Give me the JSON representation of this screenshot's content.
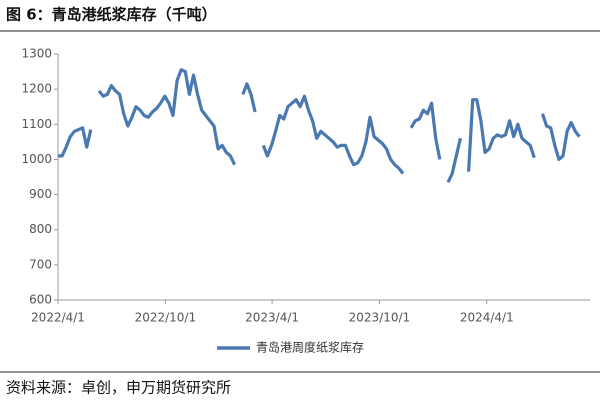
{
  "chart_data": {
    "type": "line",
    "title": "图 6：青岛港纸浆库存（千吨）",
    "source": "资料来源：卓创，申万期货研究所",
    "x": [
      "2022/4/1",
      "2022/4/8",
      "2022/4/15",
      "2022/4/22",
      "2022/4/29",
      "2022/5/6",
      "2022/5/13",
      "2022/5/20",
      "2022/5/27",
      "2022/6/3",
      "2022/6/10",
      "2022/6/17",
      "2022/6/24",
      "2022/7/1",
      "2022/7/8",
      "2022/7/15",
      "2022/7/22",
      "2022/7/29",
      "2022/8/5",
      "2022/8/12",
      "2022/8/19",
      "2022/8/26",
      "2022/9/2",
      "2022/9/9",
      "2022/9/16",
      "2022/9/23",
      "2022/9/30",
      "2022/10/7",
      "2022/10/14",
      "2022/10/21",
      "2022/10/28",
      "2022/11/4",
      "2022/11/11",
      "2022/11/18",
      "2022/11/25",
      "2022/12/2",
      "2022/12/9",
      "2022/12/16",
      "2022/12/23",
      "2022/12/30",
      "2023/1/6",
      "2023/1/13",
      "2023/1/20",
      "2023/1/27",
      "2023/2/3",
      "2023/2/10",
      "2023/2/17",
      "2023/2/24",
      "2023/3/3",
      "2023/3/10",
      "2023/3/17",
      "2023/3/24",
      "2023/3/31",
      "2023/4/7",
      "2023/4/14",
      "2023/4/21",
      "2023/4/28",
      "2023/5/5",
      "2023/5/12",
      "2023/5/19",
      "2023/5/26",
      "2023/6/2",
      "2023/6/9",
      "2023/6/16",
      "2023/6/23",
      "2023/6/30",
      "2023/7/7",
      "2023/7/14",
      "2023/7/21",
      "2023/7/28",
      "2023/8/4",
      "2023/8/11",
      "2023/8/18",
      "2023/8/25",
      "2023/9/1",
      "2023/9/8",
      "2023/9/15",
      "2023/9/22",
      "2023/9/29",
      "2023/10/6",
      "2023/10/13",
      "2023/10/20",
      "2023/10/27",
      "2023/11/3",
      "2023/11/10",
      "2023/11/17",
      "2023/11/24",
      "2023/12/1",
      "2023/12/8",
      "2023/12/15",
      "2023/12/22",
      "2023/12/29",
      "2024/1/5",
      "2024/1/12",
      "2024/1/19",
      "2024/1/26",
      "2024/2/2",
      "2024/2/9",
      "2024/2/16",
      "2024/2/23",
      "2024/3/1",
      "2024/3/8",
      "2024/3/15",
      "2024/3/22",
      "2024/3/29",
      "2024/4/5",
      "2024/4/12",
      "2024/4/19",
      "2024/4/26",
      "2024/5/3",
      "2024/5/10",
      "2024/5/17",
      "2024/5/24",
      "2024/5/31",
      "2024/6/7",
      "2024/6/14",
      "2024/6/21",
      "2024/6/28",
      "2024/7/5",
      "2024/7/12",
      "2024/7/19",
      "2024/7/26",
      "2024/8/2",
      "2024/8/9",
      "2024/8/16",
      "2024/8/23",
      "2024/8/30",
      "2024/9/6"
    ],
    "series": [
      {
        "name": "青岛港周度纸浆库存",
        "color": "#4a78b0",
        "values": [
          1010,
          1010,
          1035,
          1065,
          1080,
          1085,
          1090,
          1035,
          1085,
          null,
          1195,
          1180,
          1185,
          1210,
          1195,
          1185,
          1130,
          1095,
          1120,
          1150,
          1140,
          1125,
          1120,
          1135,
          1145,
          1160,
          1180,
          1160,
          1125,
          1225,
          1255,
          1250,
          1185,
          1240,
          1185,
          1140,
          1125,
          1110,
          1095,
          1030,
          1040,
          1020,
          1010,
          985,
          null,
          1185,
          1215,
          1185,
          1135,
          null,
          1040,
          1010,
          1040,
          1080,
          1125,
          1115,
          1150,
          1160,
          1170,
          1150,
          1180,
          1140,
          1110,
          1060,
          1080,
          1070,
          1060,
          1050,
          1035,
          1040,
          1040,
          1010,
          985,
          990,
          1010,
          1050,
          1120,
          1065,
          1055,
          1045,
          1030,
          1000,
          985,
          975,
          960,
          null,
          1090,
          1110,
          1115,
          1140,
          1130,
          1160,
          1060,
          1000,
          null,
          935,
          960,
          1010,
          1060,
          null,
          965,
          1170,
          1170,
          1110,
          1020,
          1030,
          1060,
          1070,
          1065,
          1070,
          1110,
          1065,
          1100,
          1060,
          1050,
          1040,
          1005,
          null,
          1130,
          1095,
          1090,
          1040,
          1000,
          1010,
          1080,
          1105,
          1080,
          1065
        ]
      }
    ],
    "xlim": [
      "2022/4/1",
      "2024/9/24"
    ],
    "xticks": [
      "2022/4/1",
      "2022/10/1",
      "2023/4/1",
      "2023/10/1",
      "2024/4/1"
    ],
    "ylim": [
      600,
      1300
    ],
    "yticks": [
      600,
      700,
      800,
      900,
      1000,
      1100,
      1200,
      1300
    ],
    "grid": false,
    "legend": "bottom"
  }
}
